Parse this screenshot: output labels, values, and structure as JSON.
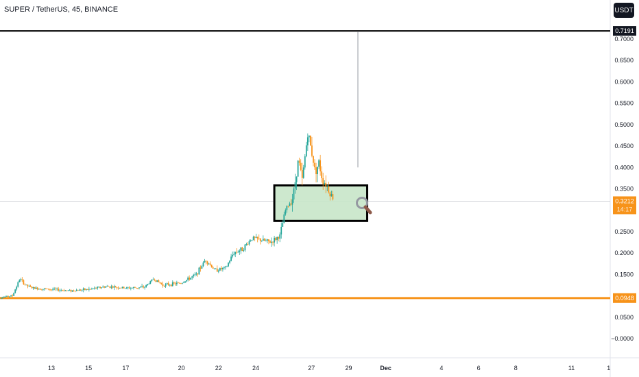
{
  "header": {
    "title": "SUPER / TetherUS, 45, BINANCE",
    "currency": "USDT"
  },
  "chart_data": {
    "type": "candlestick",
    "y_ticks": [
      "0.7000",
      "0.6500",
      "0.6000",
      "0.5500",
      "0.5000",
      "0.4500",
      "0.4000",
      "0.3500",
      "0.2500",
      "0.2000",
      "0.1500",
      "0.0500",
      "−0.0000"
    ],
    "y_tick_values": [
      0.7,
      0.65,
      0.6,
      0.55,
      0.5,
      0.45,
      0.4,
      0.35,
      0.25,
      0.2,
      0.15,
      0.05,
      0.0
    ],
    "x_ticks": [
      {
        "label": "13",
        "day": 13
      },
      {
        "label": "15",
        "day": 15
      },
      {
        "label": "17",
        "day": 17
      },
      {
        "label": "20",
        "day": 20
      },
      {
        "label": "22",
        "day": 22
      },
      {
        "label": "24",
        "day": 24
      },
      {
        "label": "27",
        "day": 27
      },
      {
        "label": "29",
        "day": 29
      },
      {
        "label": "Dec",
        "day": 31
      },
      {
        "label": "4",
        "day": 34
      },
      {
        "label": "6",
        "day": 36
      },
      {
        "label": "8",
        "day": 38
      },
      {
        "label": "11",
        "day": 41
      },
      {
        "label": "1",
        "day": 43
      }
    ],
    "price_path": [
      [
        10.0,
        0.095
      ],
      [
        10.9,
        0.1
      ],
      [
        11.3,
        0.14
      ],
      [
        11.6,
        0.125
      ],
      [
        12.0,
        0.118
      ],
      [
        13.0,
        0.115
      ],
      [
        14.0,
        0.112
      ],
      [
        15.0,
        0.115
      ],
      [
        16.0,
        0.122
      ],
      [
        17.0,
        0.118
      ],
      [
        18.0,
        0.12
      ],
      [
        18.5,
        0.14
      ],
      [
        19.0,
        0.125
      ],
      [
        20.0,
        0.13
      ],
      [
        20.8,
        0.15
      ],
      [
        21.3,
        0.185
      ],
      [
        21.8,
        0.16
      ],
      [
        22.4,
        0.165
      ],
      [
        22.8,
        0.2
      ],
      [
        23.3,
        0.21
      ],
      [
        23.8,
        0.235
      ],
      [
        24.3,
        0.23
      ],
      [
        24.8,
        0.225
      ],
      [
        25.3,
        0.24
      ],
      [
        25.6,
        0.3
      ],
      [
        26.0,
        0.33
      ],
      [
        26.3,
        0.42
      ],
      [
        26.5,
        0.37
      ],
      [
        26.8,
        0.48
      ],
      [
        27.0,
        0.44
      ],
      [
        27.2,
        0.39
      ],
      [
        27.4,
        0.41
      ],
      [
        27.6,
        0.37
      ],
      [
        27.8,
        0.36
      ],
      [
        28.0,
        0.34
      ],
      [
        28.2,
        0.325
      ]
    ],
    "levels": [
      {
        "label": "0.7191",
        "value": 0.7191,
        "color": "#000000"
      },
      {
        "label": "0.0948",
        "value": 0.0948,
        "color": "#f7931a"
      }
    ],
    "current_price": {
      "label": "0.3212",
      "value": 0.3212,
      "countdown": "14:17",
      "color": "#f7931a"
    },
    "zone": {
      "from_day": 25.0,
      "to_day": 30.0,
      "top": 0.358,
      "bottom": 0.275,
      "fill": "#c8e6c9"
    },
    "wick": {
      "day": 29.5,
      "top": 0.718,
      "bottom": 0.4
    },
    "colors": {
      "up": "#26a69a",
      "down": "#f7931a"
    }
  }
}
